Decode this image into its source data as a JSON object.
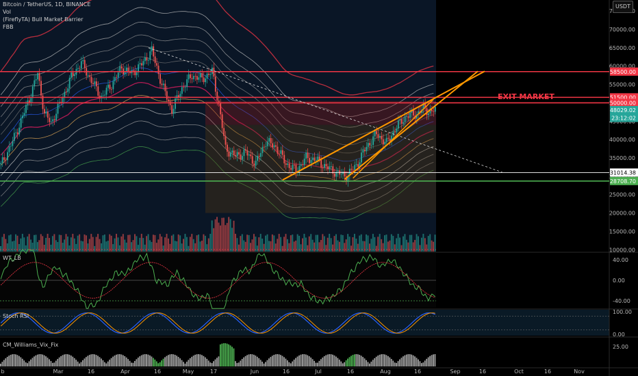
{
  "header": {
    "symbol_line": "Bitcoin / TetherUS, 1D, BINANCE",
    "indicators": [
      "Vol",
      "(FireflyTA) Bull Market Barrier",
      "FBB"
    ],
    "currency": "USDT"
  },
  "panes": {
    "wt": "WT_LB",
    "stoch": "Stoch RSI",
    "vix": "CM_Williams_Vix_Fix"
  },
  "annotation": {
    "exit_market": "EXIT MARKET"
  },
  "colors": {
    "bg": "#000000",
    "up": "#26a69a",
    "down": "#ef5350",
    "level_red": "#f23645",
    "level_green": "#4caf50",
    "trend_orange": "#ff9800",
    "axis_text": "#b8b8b8"
  },
  "chart_data": {
    "type": "candlestick",
    "x_tick_labels": [
      "b",
      "Mar",
      "16",
      "Apr",
      "16",
      "May",
      "17",
      "Jun",
      "16",
      "Jul",
      "16",
      "Aug",
      "16",
      "Sep",
      "16",
      "Oct",
      "16",
      "Nov"
    ],
    "price_axis": {
      "ticks": [
        "75000.00",
        "70000.00",
        "65000.00",
        "60000.00",
        "55000.00",
        "50000.00",
        "45000.00",
        "40000.00",
        "35000.00",
        "30000.00",
        "25000.00",
        "20000.00",
        "15000.00",
        "10000.00"
      ],
      "tagged": [
        {
          "label": "58500.00",
          "color": "#f23645"
        },
        {
          "label": "51500.00",
          "color": "#f23645"
        },
        {
          "label": "50000.00",
          "color": "#f23645"
        },
        {
          "label": "48029.02",
          "color": "#26a69a"
        },
        {
          "label": "23:12:02",
          "color": "#26a69a"
        },
        {
          "label": "31014.38",
          "color": "#ffffff"
        },
        {
          "label": "28708.70",
          "color": "#4caf50"
        }
      ]
    },
    "horizontal_levels": [
      {
        "label": "58500.00",
        "value": 58500,
        "color": "#f23645"
      },
      {
        "label": "51500.00",
        "value": 51500,
        "color": "#f23645"
      },
      {
        "label": "50000.00",
        "value": 50000,
        "color": "#f23645"
      },
      {
        "label": "31014.38",
        "value": 31014.38,
        "color": "#ffffff"
      },
      {
        "label": "28708.70",
        "value": 28708.7,
        "color": "#4caf50"
      }
    ],
    "price_anchors": [
      [
        0,
        33000
      ],
      [
        6,
        38500
      ],
      [
        12,
        45000
      ],
      [
        18,
        52500
      ],
      [
        22,
        58000
      ],
      [
        26,
        47000
      ],
      [
        30,
        44500
      ],
      [
        36,
        50500
      ],
      [
        42,
        57000
      ],
      [
        48,
        61000
      ],
      [
        54,
        56000
      ],
      [
        60,
        51500
      ],
      [
        66,
        55000
      ],
      [
        72,
        59500
      ],
      [
        78,
        58000
      ],
      [
        84,
        60500
      ],
      [
        90,
        64200
      ],
      [
        96,
        55000
      ],
      [
        102,
        48000
      ],
      [
        108,
        54000
      ],
      [
        114,
        57500
      ],
      [
        120,
        56500
      ],
      [
        126,
        58500
      ],
      [
        130,
        49500
      ],
      [
        134,
        37500
      ],
      [
        140,
        35500
      ],
      [
        146,
        36500
      ],
      [
        152,
        33500
      ],
      [
        158,
        39500
      ],
      [
        164,
        38000
      ],
      [
        170,
        33500
      ],
      [
        176,
        31500
      ],
      [
        182,
        35000
      ],
      [
        188,
        34500
      ],
      [
        194,
        32500
      ],
      [
        200,
        31000
      ],
      [
        206,
        30000
      ],
      [
        212,
        33000
      ],
      [
        218,
        38000
      ],
      [
        224,
        41500
      ],
      [
        230,
        39000
      ],
      [
        236,
        43500
      ],
      [
        242,
        46500
      ],
      [
        248,
        47000
      ],
      [
        252,
        48500
      ],
      [
        256,
        47500
      ],
      [
        259,
        48029
      ]
    ],
    "n_days": 260,
    "wt_axis": [
      "40.00",
      "0.00",
      "-40.00"
    ],
    "stoch_axis": [
      "100.00",
      "0.00"
    ],
    "vix_axis": [
      "25.00"
    ]
  }
}
